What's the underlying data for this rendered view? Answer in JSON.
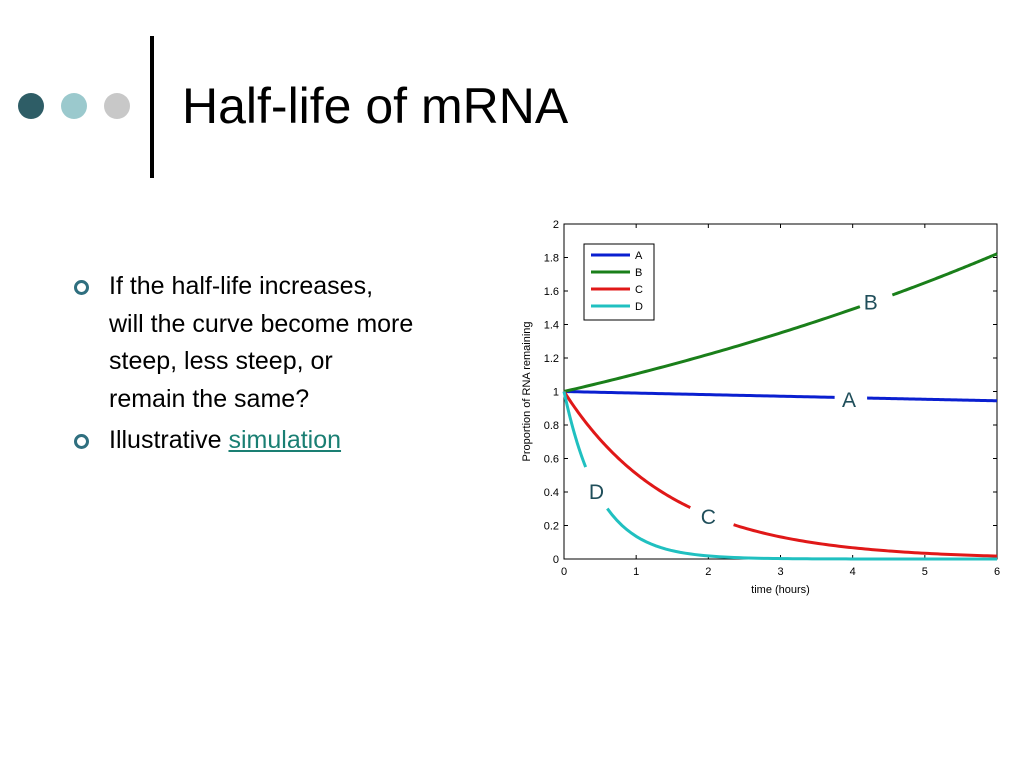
{
  "slide": {
    "title": "Half-life of mRNA",
    "bullets": [
      {
        "text": "If the half-life increases, will the curve become more steep, less steep, or remain the same?"
      },
      {
        "text": "Illustrative ",
        "link": "simulation"
      }
    ]
  },
  "decor": {
    "dots": [
      "#2e5d66",
      "#9bc9cd",
      "#c8c8c8"
    ]
  },
  "chart_data": {
    "type": "line",
    "xlabel": "time (hours)",
    "ylabel": "Proportion of RNA remaining",
    "xlim": [
      0,
      6
    ],
    "ylim": [
      0,
      2
    ],
    "xticks": [
      0,
      1,
      2,
      3,
      4,
      5,
      6
    ],
    "yticks": [
      0,
      0.2,
      0.4,
      0.6,
      0.8,
      1,
      1.2,
      1.4,
      1.6,
      1.8,
      2
    ],
    "legend_position": "top-left",
    "series": [
      {
        "name": "A",
        "color": "#0a1fd0",
        "y0": 1,
        "rate": -0.0095,
        "gap": [
          3.75,
          4.2
        ],
        "label": {
          "text": "A",
          "x": 3.95,
          "y": 0.95
        }
      },
      {
        "name": "B",
        "color": "#1a7f1a",
        "y0": 1,
        "rate": 0.1,
        "gap": [
          4.1,
          4.55
        ],
        "label": {
          "text": "B",
          "x": 4.25,
          "y": 1.53
        }
      },
      {
        "name": "C",
        "color": "#e01818",
        "y0": 1,
        "rate": -0.675,
        "gap": [
          1.75,
          2.35
        ],
        "label": {
          "text": "C",
          "x": 2.0,
          "y": 0.25
        }
      },
      {
        "name": "D",
        "color": "#20c0c0",
        "y0": 1,
        "rate": -2.0,
        "gap": [
          0.3,
          0.6
        ],
        "label": {
          "text": "D",
          "x": 0.45,
          "y": 0.4
        }
      }
    ]
  }
}
